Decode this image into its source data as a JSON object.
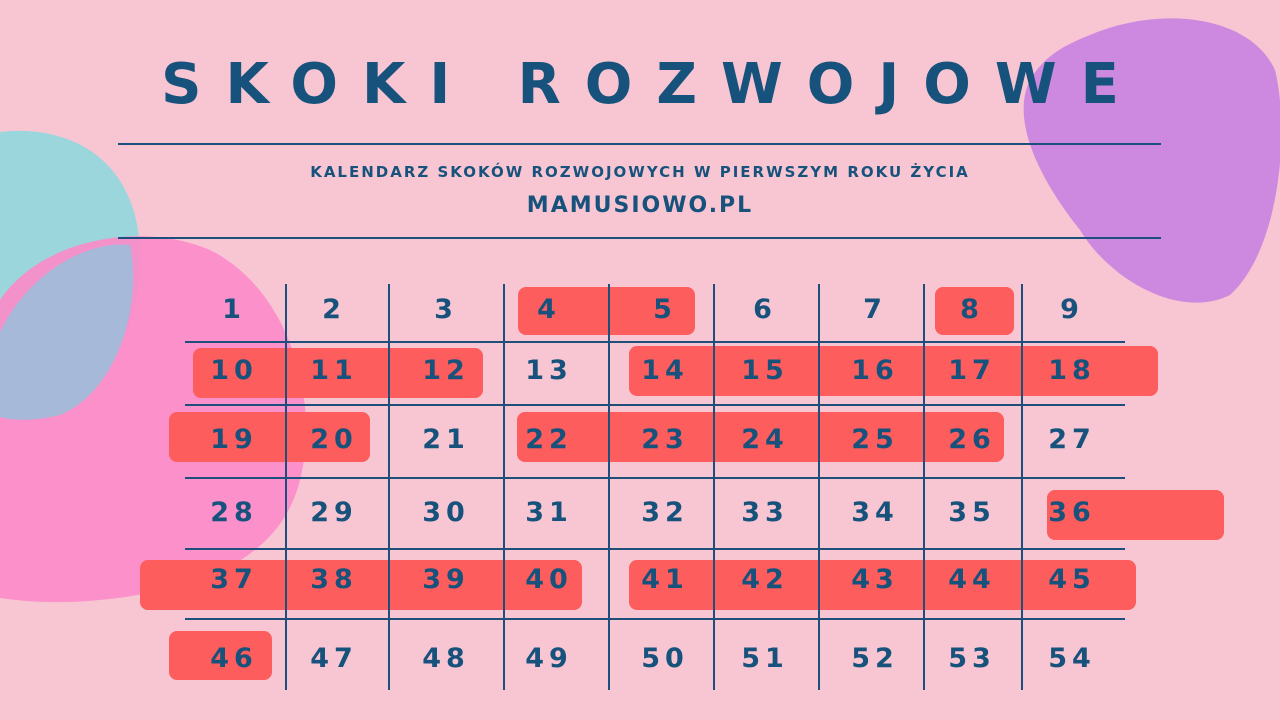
{
  "header": {
    "title": "SKOKI ROZWOJOWE",
    "subtitle": "KALENDARZ SKOKÓW ROZWOJOWYCH W PIERWSZYM ROKU ŻYCIA",
    "site": "MAMUSIOWO.PL"
  },
  "calendar": {
    "rows": [
      [
        "1",
        "2",
        "3",
        "4",
        "5",
        "6",
        "7",
        "8",
        "9"
      ],
      [
        "10",
        "11",
        "12",
        "13",
        "14",
        "15",
        "16",
        "17",
        "18"
      ],
      [
        "19",
        "20",
        "21",
        "22",
        "23",
        "24",
        "25",
        "26",
        "27"
      ],
      [
        "28",
        "29",
        "30",
        "31",
        "32",
        "33",
        "34",
        "35",
        "36"
      ],
      [
        "37",
        "38",
        "39",
        "40",
        "41",
        "42",
        "43",
        "44",
        "45"
      ],
      [
        "46",
        "47",
        "48",
        "49",
        "50",
        "51",
        "52",
        "53",
        "54"
      ]
    ],
    "highlighted_ranges": [
      [
        4,
        5
      ],
      [
        8,
        8
      ],
      [
        10,
        12
      ],
      [
        14,
        18
      ],
      [
        19,
        20
      ],
      [
        22,
        26
      ],
      [
        36,
        36
      ],
      [
        37,
        40
      ],
      [
        41,
        45
      ],
      [
        46,
        46
      ]
    ]
  },
  "colors": {
    "background": "#f8c6d2",
    "text": "#17527c",
    "highlight": "#fd5d5c",
    "blob_teal": "#9ad6dc",
    "blob_pink": "#fb8bc9",
    "blob_purple": "#cd88e0"
  }
}
